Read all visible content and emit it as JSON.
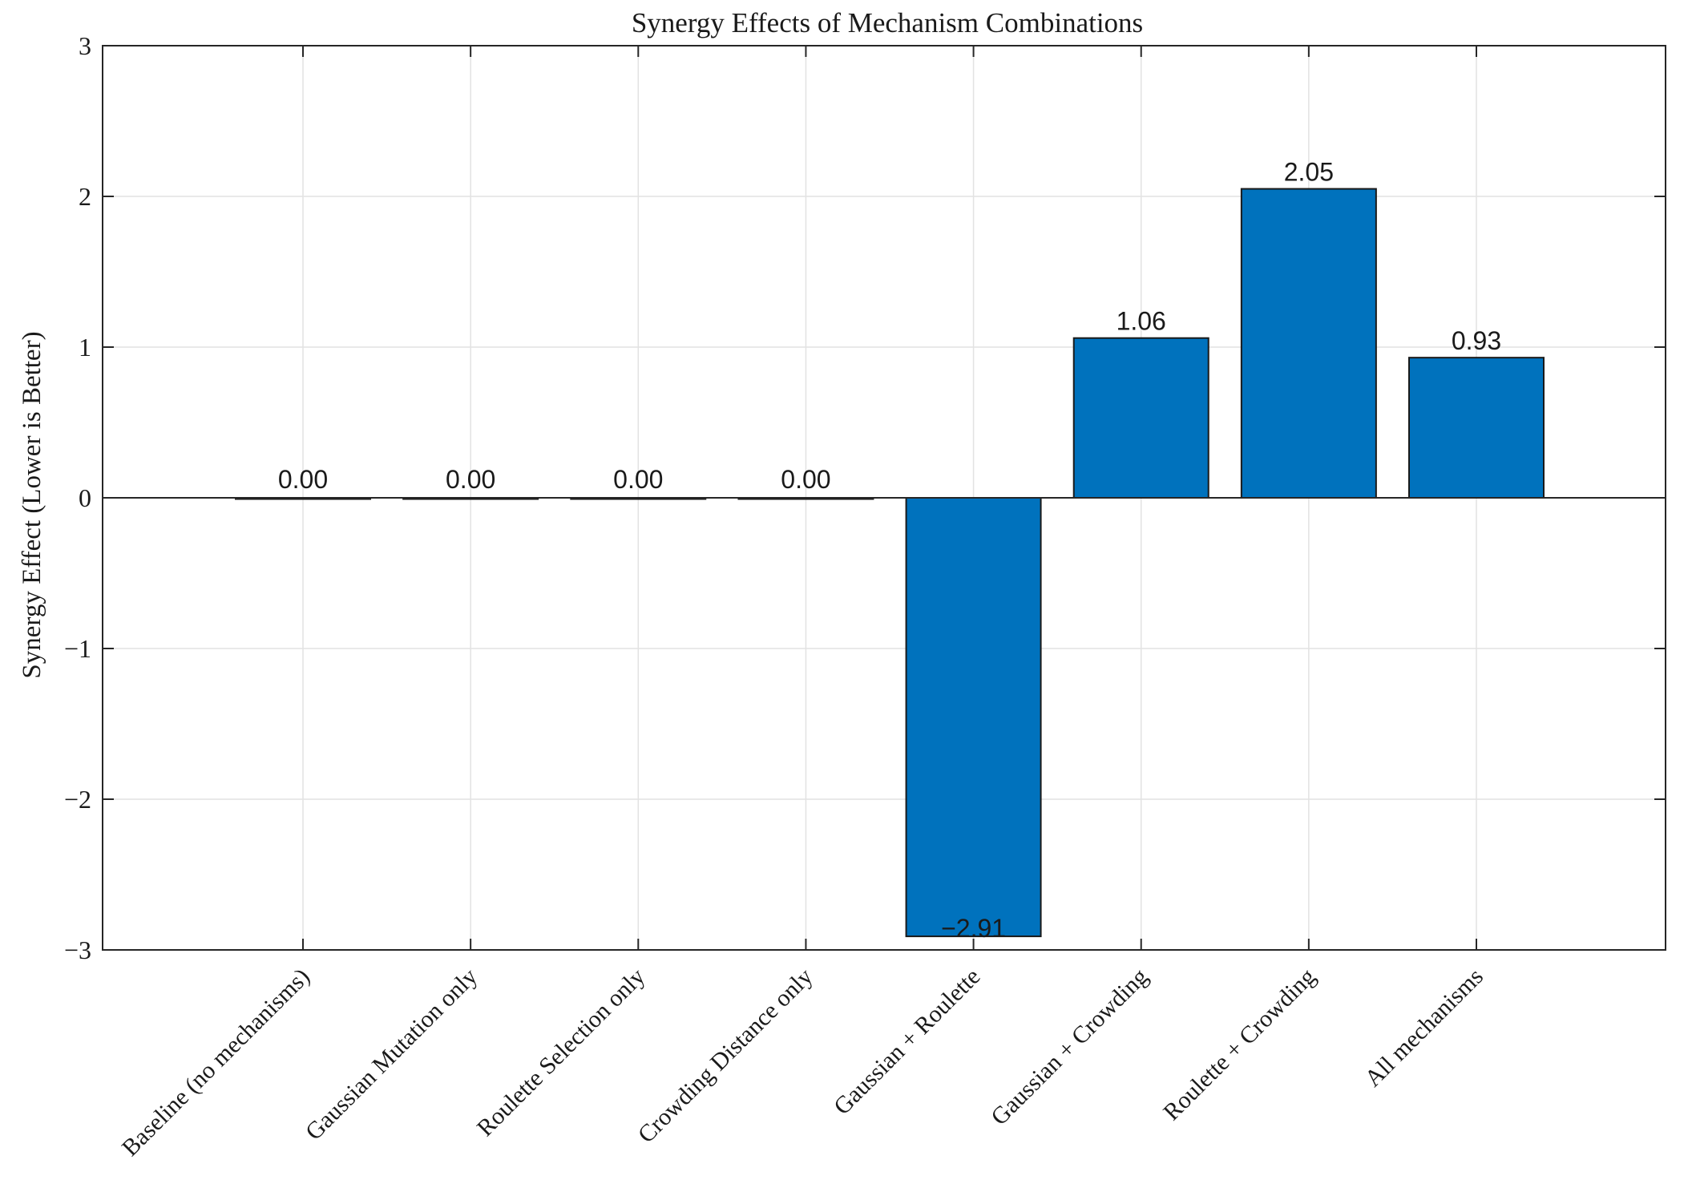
{
  "chart_data": {
    "type": "bar",
    "title": "Synergy Effects of Mechanism Combinations",
    "xlabel": "",
    "ylabel": "Synergy Effect (Lower is Better)",
    "ylim": [
      -3,
      3
    ],
    "yticks": [
      -3,
      -2,
      -1,
      0,
      1,
      2,
      3
    ],
    "ytick_labels": [
      "−3",
      "−2",
      "−1",
      "0",
      "1",
      "2",
      "3"
    ],
    "grid": true,
    "categories": [
      "Baseline (no mechanisms)",
      "Gaussian Mutation only",
      "Roulette Selection only",
      "Crowding Distance only",
      "Gaussian + Roulette",
      "Gaussian + Crowding",
      "Roulette + Crowding",
      "All mechanisms"
    ],
    "values": [
      0.0,
      0.0,
      0.0,
      0.0,
      -2.91,
      1.06,
      2.05,
      0.93
    ],
    "value_labels": [
      "0.00",
      "0.00",
      "0.00",
      "0.00",
      "−2.91",
      "1.06",
      "2.05",
      "0.93"
    ],
    "bar_color": "#0072BD",
    "bar_edge_color": "#1a1a1a"
  }
}
